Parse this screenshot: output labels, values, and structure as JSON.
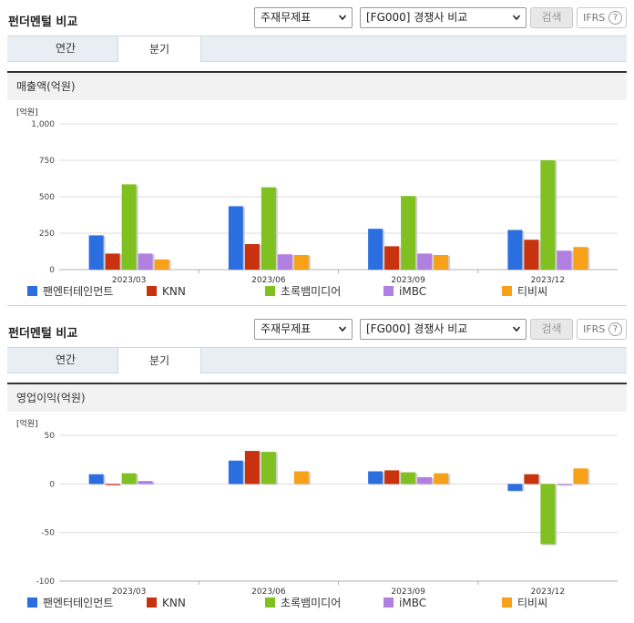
{
  "panels": [
    {
      "title": "펀더멘털 비교",
      "statement_select": "주재무제표",
      "peer_select": "[FG000] 경쟁사 비교",
      "search_button": "검색",
      "ifrs_label": "IFRS",
      "ifrs_help": "?",
      "tabs": [
        "연간",
        "분기"
      ],
      "active_tab": 1,
      "section_title": "매출액(억원)"
    },
    {
      "title": "펀더멘털 비교",
      "statement_select": "주재무제표",
      "peer_select": "[FG000] 경쟁사 비교",
      "search_button": "검색",
      "ifrs_label": "IFRS",
      "ifrs_help": "?",
      "tabs": [
        "연간",
        "분기"
      ],
      "active_tab": 1,
      "section_title": "영업이익(억원)"
    }
  ],
  "legend": [
    {
      "name": "팬엔터테인먼트",
      "color": "#2a6ee0"
    },
    {
      "name": "KNN",
      "color": "#c8320e"
    },
    {
      "name": "초록뱀미디어",
      "color": "#80c020"
    },
    {
      "name": "iMBC",
      "color": "#b07fe0"
    },
    {
      "name": "티비씨",
      "color": "#f7a11a"
    }
  ],
  "chart_data": [
    {
      "type": "bar",
      "ylabel": "[억원]",
      "ylim": [
        0,
        1000
      ],
      "yticks": [
        0,
        250,
        500,
        750,
        1000
      ],
      "ytick_labels": [
        "0",
        "250",
        "500",
        "750",
        "1,000"
      ],
      "categories": [
        "2023/03",
        "2023/06",
        "2023/09",
        "2023/12"
      ],
      "series": [
        {
          "name": "팬엔터테인먼트",
          "values": [
            235,
            435,
            280,
            272
          ]
        },
        {
          "name": "KNN",
          "values": [
            110,
            175,
            160,
            205
          ]
        },
        {
          "name": "초록뱀미디어",
          "values": [
            585,
            565,
            505,
            750
          ]
        },
        {
          "name": "iMBC",
          "values": [
            110,
            105,
            110,
            130
          ]
        },
        {
          "name": "티비씨",
          "values": [
            70,
            100,
            100,
            155
          ]
        }
      ],
      "grid": true,
      "legend_position": "bottom"
    },
    {
      "type": "bar",
      "ylabel": "[억원]",
      "ylim": [
        -100,
        50
      ],
      "yticks": [
        -100,
        -50,
        0,
        50
      ],
      "ytick_labels": [
        "-100",
        "-50",
        "0",
        "50"
      ],
      "categories": [
        "2023/03",
        "2023/06",
        "2023/09",
        "2023/12"
      ],
      "series": [
        {
          "name": "팬엔터테인먼트",
          "values": [
            10,
            24,
            13,
            -7
          ]
        },
        {
          "name": "KNN",
          "values": [
            -1,
            34,
            14,
            10
          ]
        },
        {
          "name": "초록뱀미디어",
          "values": [
            11,
            33,
            12,
            -62
          ]
        },
        {
          "name": "iMBC",
          "values": [
            3,
            0,
            7,
            -1
          ]
        },
        {
          "name": "티비씨",
          "values": [
            0,
            13,
            11,
            16
          ]
        }
      ],
      "grid": true,
      "legend_position": "bottom"
    }
  ]
}
